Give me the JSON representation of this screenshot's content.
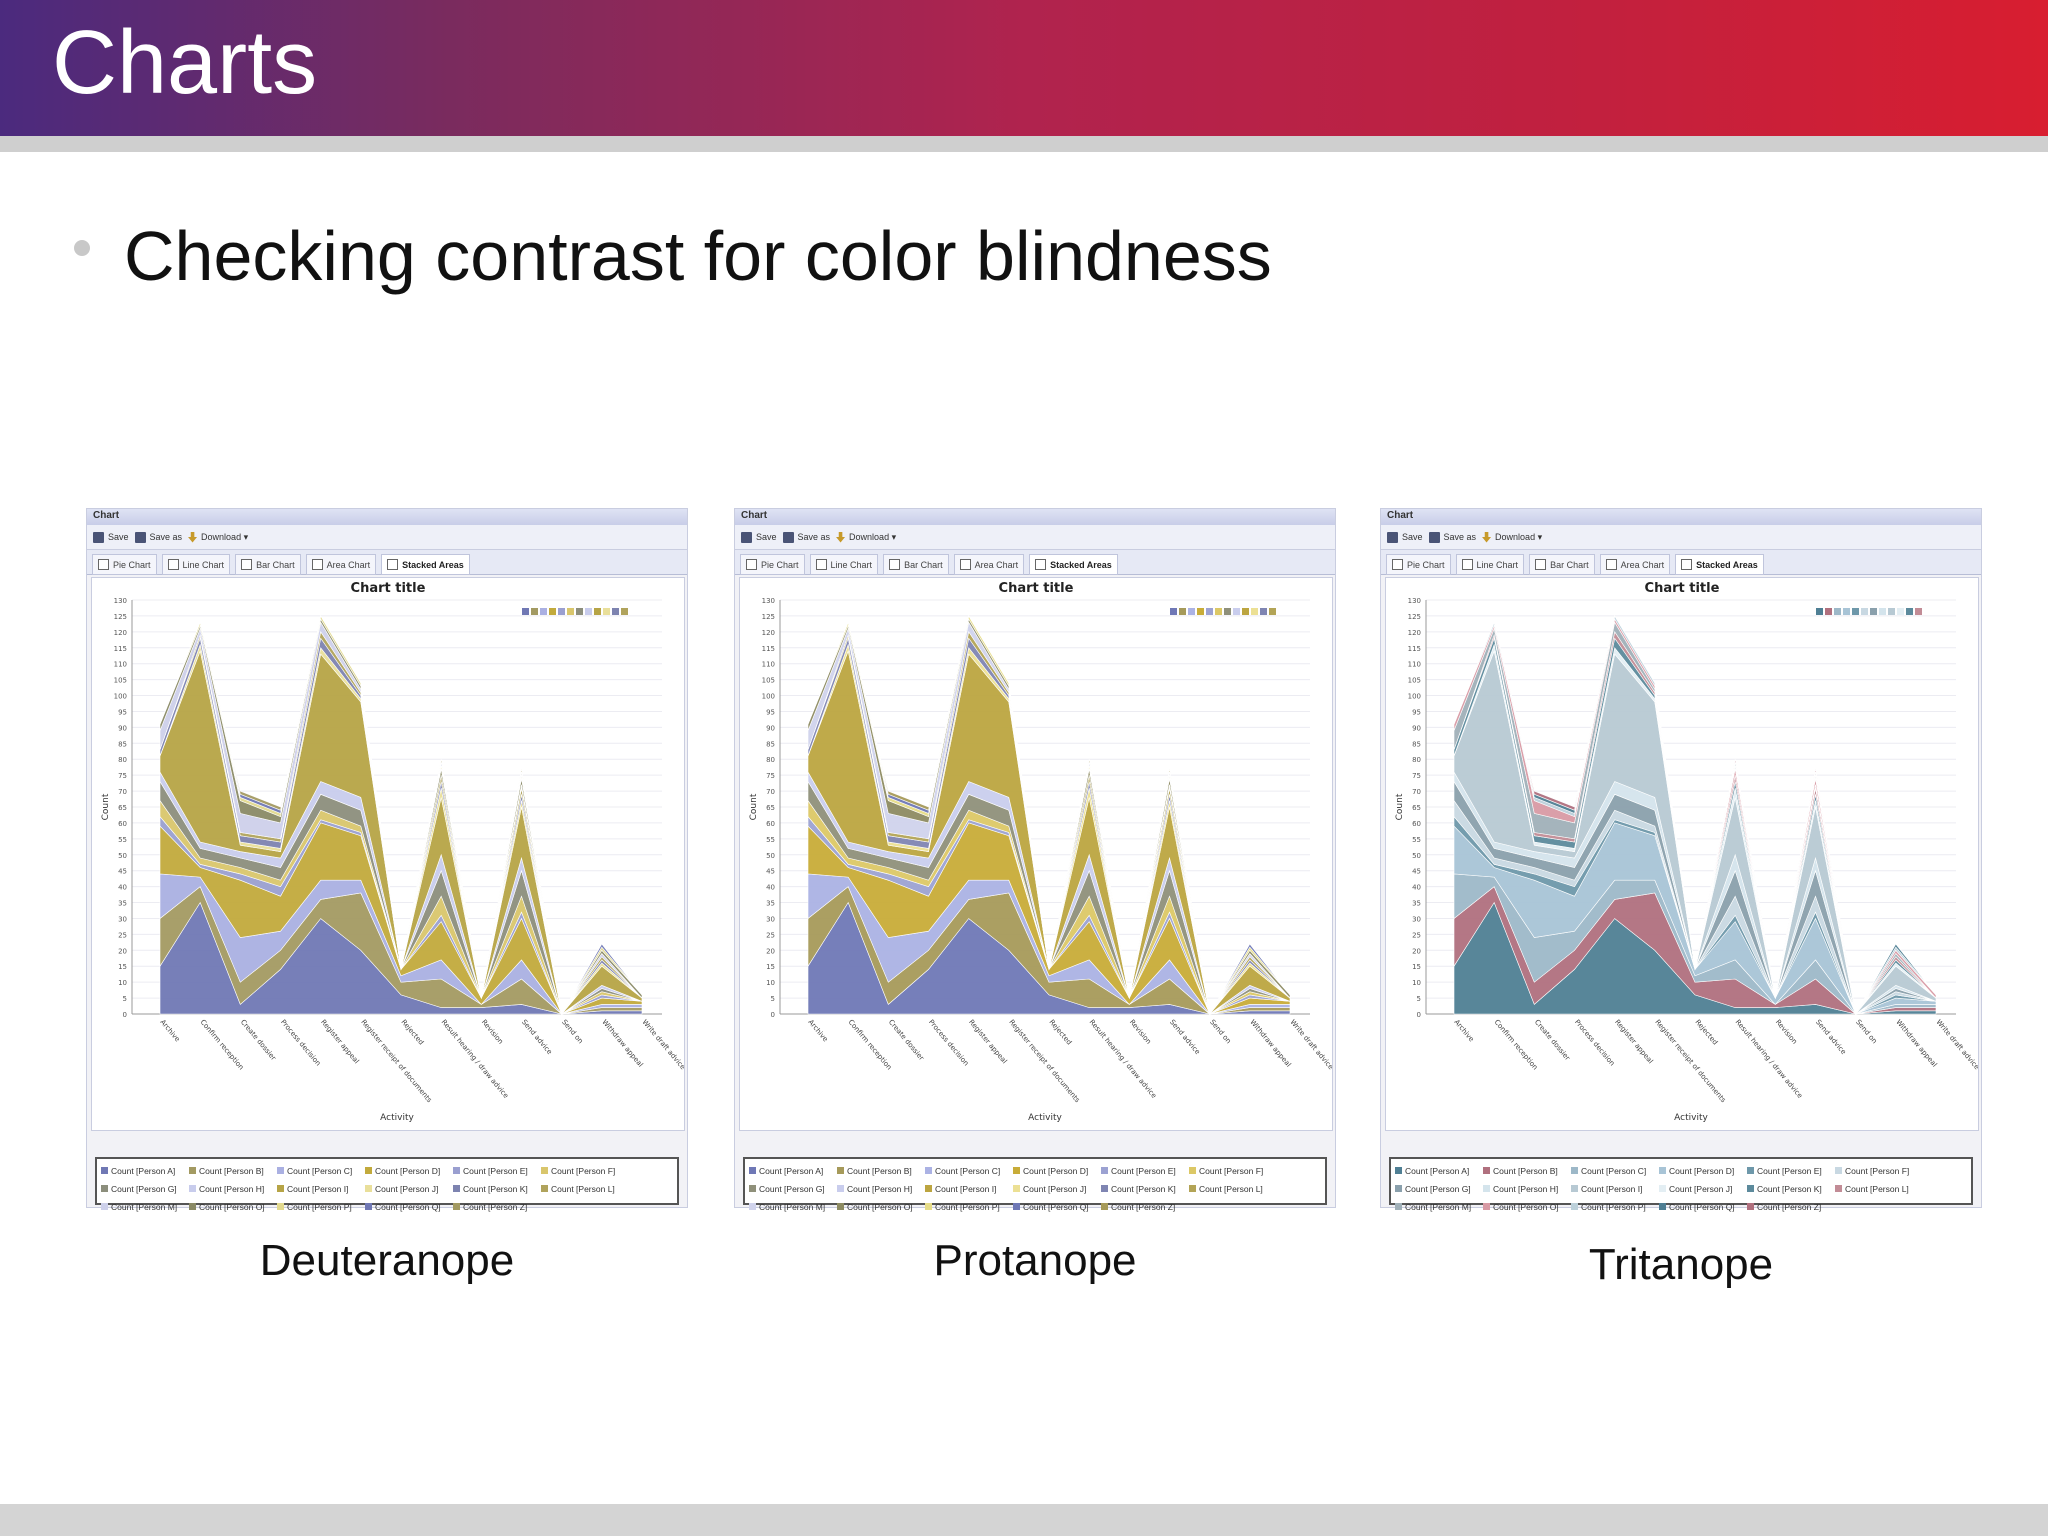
{
  "slide": {
    "title": "Charts",
    "bullet": "Checking contrast for color blindness"
  },
  "window": {
    "title": "Chart",
    "toolbar": {
      "save": "Save",
      "save_as": "Save as",
      "download": "Download ▾"
    },
    "tabs": [
      "Pie Chart",
      "Line Chart",
      "Bar Chart",
      "Area Chart",
      "Stacked Areas"
    ],
    "active_tab": "Stacked Areas"
  },
  "captions": [
    "Deuteranope",
    "Protanope",
    "Tritanope"
  ],
  "palettes": {
    "deuteranope": [
      "#7078b4",
      "#a39a62",
      "#aab0e2",
      "#c2aa3c",
      "#9a9fd0",
      "#d9c66c",
      "#8c8e7c",
      "#c8ccec",
      "#b6a446",
      "#e9df9a",
      "#7d83b0",
      "#b0a35c",
      "#cdd0ea",
      "#8a8a66",
      "#e2d98e"
    ],
    "protanope": [
      "#6f78b6",
      "#a69a5a",
      "#abb2e4",
      "#c8ac38",
      "#9ca2d2",
      "#dcc866",
      "#8f907a",
      "#c9cded",
      "#bca540",
      "#ece094",
      "#7f85b2",
      "#b3a456",
      "#d0d3ec",
      "#8d8b62",
      "#e6dc88"
    ],
    "tritanope": [
      "#4f7f94",
      "#b0707e",
      "#9db8c8",
      "#a8c4d6",
      "#6e98aa",
      "#c8d8e2",
      "#8aa0ac",
      "#d4e4ec",
      "#b7c9d3",
      "#e3eef3",
      "#5c8a9c",
      "#c28c96",
      "#a0b0b8",
      "#d89aa4",
      "#bcd0da"
    ]
  },
  "chart_data": [
    {
      "type": "area",
      "stacked": true,
      "title": "Chart title",
      "xlabel": "Activity",
      "ylabel": "Count",
      "ylim": [
        0,
        130
      ],
      "yticks": [
        0,
        5,
        10,
        15,
        20,
        25,
        30,
        35,
        40,
        45,
        50,
        55,
        60,
        65,
        70,
        75,
        80,
        85,
        90,
        95,
        100,
        105,
        110,
        115,
        120,
        125,
        130
      ],
      "grid": true,
      "legend": "bottom",
      "categories": [
        "Archive",
        "Confirm reception",
        "Create dossier",
        "Process decision",
        "Register appeal",
        "Register receipt of documents",
        "Rejected",
        "Result hearing / draw advice",
        "Revision",
        "Send advice",
        "Send on",
        "Withdraw appeal",
        "Write draft advice"
      ],
      "series": [
        {
          "name": "Count [Person A]",
          "values": [
            15,
            35,
            3,
            14,
            30,
            20,
            6,
            2,
            2,
            3,
            0,
            1,
            1
          ]
        },
        {
          "name": "Count [Person B]",
          "values": [
            15,
            5,
            7,
            6,
            6,
            18,
            4,
            9,
            1,
            8,
            0,
            1,
            1
          ]
        },
        {
          "name": "Count [Person C]",
          "values": [
            14,
            3,
            14,
            6,
            6,
            4,
            2,
            6,
            0,
            6,
            0,
            1,
            1
          ]
        },
        {
          "name": "Count [Person D]",
          "values": [
            15,
            3,
            18,
            11,
            18,
            14,
            2,
            12,
            2,
            13,
            0,
            2,
            1
          ]
        },
        {
          "name": "Count [Person E]",
          "values": [
            3,
            1,
            2,
            3,
            1,
            1,
            0,
            2,
            0,
            2,
            0,
            1,
            0
          ]
        },
        {
          "name": "Count [Person F]",
          "values": [
            5,
            2,
            2,
            2,
            3,
            2,
            0,
            6,
            0,
            5,
            0,
            1,
            0
          ]
        },
        {
          "name": "Count [Person G]",
          "values": [
            6,
            3,
            3,
            4,
            5,
            5,
            0,
            8,
            0,
            8,
            0,
            1,
            0
          ]
        },
        {
          "name": "Count [Person H]",
          "values": [
            3,
            2,
            2,
            3,
            4,
            4,
            0,
            5,
            0,
            4,
            0,
            1,
            0
          ]
        },
        {
          "name": "Count [Person I]",
          "values": [
            5,
            60,
            2,
            2,
            40,
            30,
            0,
            18,
            0,
            16,
            0,
            6,
            1
          ]
        },
        {
          "name": "Count [Person J]",
          "values": [
            0,
            2,
            1,
            1,
            2,
            1,
            0,
            3,
            0,
            2,
            0,
            1,
            0
          ]
        },
        {
          "name": "Count [Person K]",
          "values": [
            2,
            2,
            2,
            2,
            3,
            1,
            0,
            2,
            0,
            2,
            0,
            1,
            0
          ]
        },
        {
          "name": "Count [Person L]",
          "values": [
            0,
            1,
            1,
            1,
            2,
            1,
            0,
            2,
            0,
            2,
            0,
            1,
            0
          ]
        },
        {
          "name": "Count [Person M]",
          "values": [
            6,
            2,
            6,
            5,
            3,
            1,
            0,
            0,
            0,
            1,
            0,
            1,
            0
          ]
        },
        {
          "name": "Count [Person O]",
          "values": [
            2,
            1,
            4,
            2,
            1,
            1,
            0,
            2,
            0,
            2,
            0,
            1,
            1
          ]
        },
        {
          "name": "Count [Person P]",
          "values": [
            0,
            1,
            1,
            1,
            1,
            1,
            0,
            1,
            0,
            1,
            0,
            1,
            0
          ]
        },
        {
          "name": "Count [Person Q]",
          "values": [
            0,
            0,
            1,
            1,
            0,
            0,
            0,
            1,
            0,
            1,
            0,
            1,
            0
          ]
        },
        {
          "name": "Count [Person Z]",
          "values": [
            0,
            0,
            1,
            1,
            0,
            0,
            0,
            1,
            0,
            1,
            0,
            0,
            0
          ]
        }
      ]
    }
  ]
}
